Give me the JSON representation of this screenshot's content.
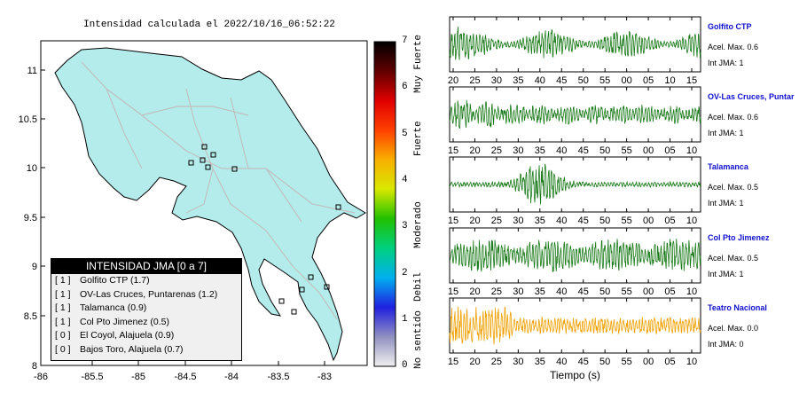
{
  "map": {
    "title": "Intensidad calculada el 2022/10/16_06:52:22",
    "x_ticks": [
      "-86",
      "-85.5",
      "-85",
      "-84.5",
      "-84",
      "-83.5",
      "-83"
    ],
    "y_ticks": [
      "11",
      "10.5",
      "10",
      "9.5",
      "9",
      "8.5",
      "8"
    ],
    "colors": {
      "land": "#b4ecec",
      "roads": "#c0c0c0",
      "station": "#222222"
    }
  },
  "legend": {
    "title": "INTENSIDAD JMA [0 a 7]",
    "rows": [
      {
        "int": "[ 1 ]",
        "label": "Golfito CTP (1.7)"
      },
      {
        "int": "[ 1 ]",
        "label": "OV-Las Cruces, Puntarenas (1.2)"
      },
      {
        "int": "[ 1 ]",
        "label": "Talamanca (0.9)"
      },
      {
        "int": "[ 1 ]",
        "label": "Col Pto Jimenez (0.5)"
      },
      {
        "int": "[ 0 ]",
        "label": "El Coyol, Alajuela (0.9)"
      },
      {
        "int": "[ 0 ]",
        "label": "Bajos Toro, Alajuela (0.7)"
      }
    ]
  },
  "colorbar": {
    "ticks": [
      "7",
      "6",
      "5",
      "4",
      "3",
      "2",
      "1",
      "0"
    ],
    "categories": [
      "Muy Fuerte",
      "Fuerte",
      "Moderado",
      "Debil",
      "No sentido"
    ],
    "gradient": [
      "#f0f0f0",
      "#9090c0",
      "#2020e0",
      "#00b0f0",
      "#00d080",
      "#20c000",
      "#d8e800",
      "#f8b000",
      "#ff4000",
      "#e00000",
      "#600000",
      "#000000"
    ]
  },
  "chart_data": [
    {
      "type": "line",
      "title": "Golfito CTP",
      "acc_label": "Acel. Max. 0.6",
      "int_label": "Int JMA: 1",
      "x_ticks": [
        "20",
        "25",
        "30",
        "35",
        "40",
        "45",
        "50",
        "55",
        "00",
        "05",
        "10",
        "15"
      ],
      "color": "#1a7a1a"
    },
    {
      "type": "line",
      "title": "OV-Las Cruces, Puntar",
      "acc_label": "Acel. Max. 0.6",
      "int_label": "Int JMA: 1",
      "x_ticks": [
        "15",
        "20",
        "25",
        "30",
        "35",
        "40",
        "45",
        "50",
        "55",
        "00",
        "05",
        "10"
      ],
      "color": "#1a7a1a"
    },
    {
      "type": "line",
      "title": "Talamanca",
      "acc_label": "Acel. Max. 0.5",
      "int_label": "Int JMA: 1",
      "x_ticks": [
        "15",
        "20",
        "25",
        "30",
        "35",
        "40",
        "45",
        "50",
        "55",
        "00",
        "05",
        "10"
      ],
      "color": "#1a7a1a"
    },
    {
      "type": "line",
      "title": "Col Pto Jimenez",
      "acc_label": "Acel. Max. 0.5",
      "int_label": "Int JMA: 1",
      "x_ticks": [
        "15",
        "20",
        "25",
        "30",
        "35",
        "40",
        "45",
        "50",
        "55",
        "00",
        "05",
        "10"
      ],
      "color": "#1a7a1a"
    },
    {
      "type": "line",
      "title": "Teatro Nacional",
      "acc_label": "Acel. Max. 0.0",
      "int_label": "Int JMA: 0",
      "x_ticks": [
        "15",
        "20",
        "25",
        "30",
        "35",
        "40",
        "45",
        "50",
        "55",
        "00",
        "05",
        "10"
      ],
      "color": "#f0a000"
    }
  ],
  "xlabel": "Tiempo (s)"
}
